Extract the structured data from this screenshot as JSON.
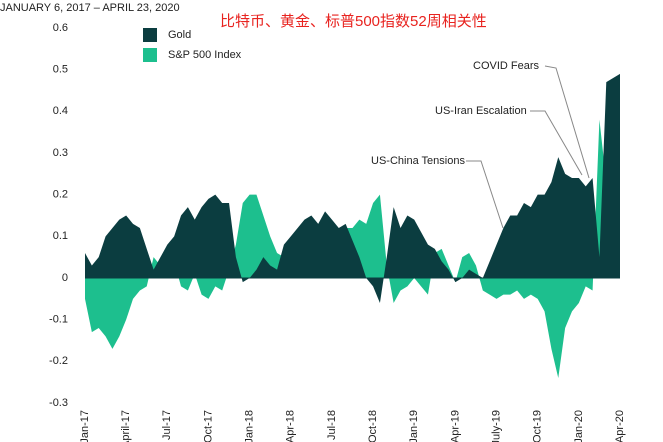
{
  "chart_data": {
    "type": "area",
    "title": "JANUARY 6, 2017 – APRIL 23, 2020",
    "subtitle": "比特币、黄金、标普500指数52周相关性",
    "categories": [
      "Jan-17",
      null,
      null,
      null,
      null,
      null,
      "April-17",
      null,
      null,
      null,
      null,
      null,
      "Jul-17",
      null,
      null,
      null,
      null,
      null,
      "Oct-17",
      null,
      null,
      null,
      null,
      null,
      "Jan-18",
      null,
      null,
      null,
      null,
      null,
      "Apr-18",
      null,
      null,
      null,
      null,
      null,
      "Jul-18",
      null,
      null,
      null,
      null,
      null,
      "Oct-18",
      null,
      null,
      null,
      null,
      null,
      "Jan-19",
      null,
      null,
      null,
      null,
      null,
      "Apr-19",
      null,
      null,
      null,
      null,
      null,
      "July-19",
      null,
      null,
      null,
      null,
      null,
      "Oct-19",
      null,
      null,
      null,
      null,
      null,
      "Jan-20",
      null,
      null,
      null,
      null,
      null,
      "Apr-20"
    ],
    "series": [
      {
        "name": "S&P 500 Index",
        "color": "#1dbf8e",
        "values": [
          -0.05,
          -0.13,
          -0.12,
          -0.14,
          -0.17,
          -0.14,
          -0.1,
          -0.05,
          -0.03,
          -0.02,
          0.05,
          0.03,
          0.06,
          0.04,
          -0.02,
          -0.03,
          0.01,
          -0.04,
          -0.05,
          -0.02,
          -0.03,
          0.02,
          0.08,
          0.18,
          0.2,
          0.2,
          0.15,
          0.1,
          0.06,
          0.05,
          0.07,
          0.06,
          0.05,
          0.07,
          0.08,
          0.07,
          0.1,
          0.08,
          0.12,
          0.12,
          0.14,
          0.13,
          0.18,
          0.2,
          0.03,
          -0.06,
          -0.03,
          -0.02,
          0.0,
          -0.02,
          -0.04,
          0.06,
          0.07,
          0.03,
          -0.01,
          0.05,
          0.06,
          0.03,
          -0.03,
          -0.04,
          -0.05,
          -0.04,
          -0.04,
          -0.03,
          -0.05,
          -0.04,
          -0.05,
          -0.08,
          -0.17,
          -0.24,
          -0.12,
          -0.08,
          -0.06,
          -0.02,
          -0.03,
          0.38,
          0.23,
          0.25,
          0.22
        ]
      },
      {
        "name": "Gold",
        "color": "#0b3d40",
        "values": [
          0.06,
          0.03,
          0.05,
          0.1,
          0.12,
          0.14,
          0.15,
          0.13,
          0.12,
          0.07,
          0.02,
          0.05,
          0.08,
          0.1,
          0.15,
          0.17,
          0.14,
          0.17,
          0.19,
          0.2,
          0.18,
          0.18,
          0.05,
          -0.01,
          0.0,
          0.02,
          0.05,
          0.03,
          0.02,
          0.08,
          0.1,
          0.12,
          0.14,
          0.15,
          0.13,
          0.16,
          0.14,
          0.12,
          0.13,
          0.09,
          0.05,
          0.0,
          -0.02,
          -0.06,
          0.05,
          0.17,
          0.12,
          0.15,
          0.14,
          0.11,
          0.08,
          0.07,
          0.04,
          0.02,
          -0.01,
          0.0,
          0.02,
          0.01,
          0.0,
          0.04,
          0.08,
          0.12,
          0.15,
          0.15,
          0.18,
          0.17,
          0.2,
          0.2,
          0.23,
          0.29,
          0.25,
          0.24,
          0.24,
          0.22,
          0.24,
          0.05,
          0.47,
          0.48,
          0.49
        ]
      }
    ],
    "ylim": [
      -0.3,
      0.6
    ],
    "yticks": [
      0.6,
      0.5,
      0.4,
      0.3,
      0.2,
      0.1,
      0,
      -0.1,
      -0.2,
      -0.3
    ],
    "legend": "top-left",
    "annotations": [
      "COVID Fears",
      "US-Iran Escalation",
      "US-China Tensions"
    ]
  }
}
